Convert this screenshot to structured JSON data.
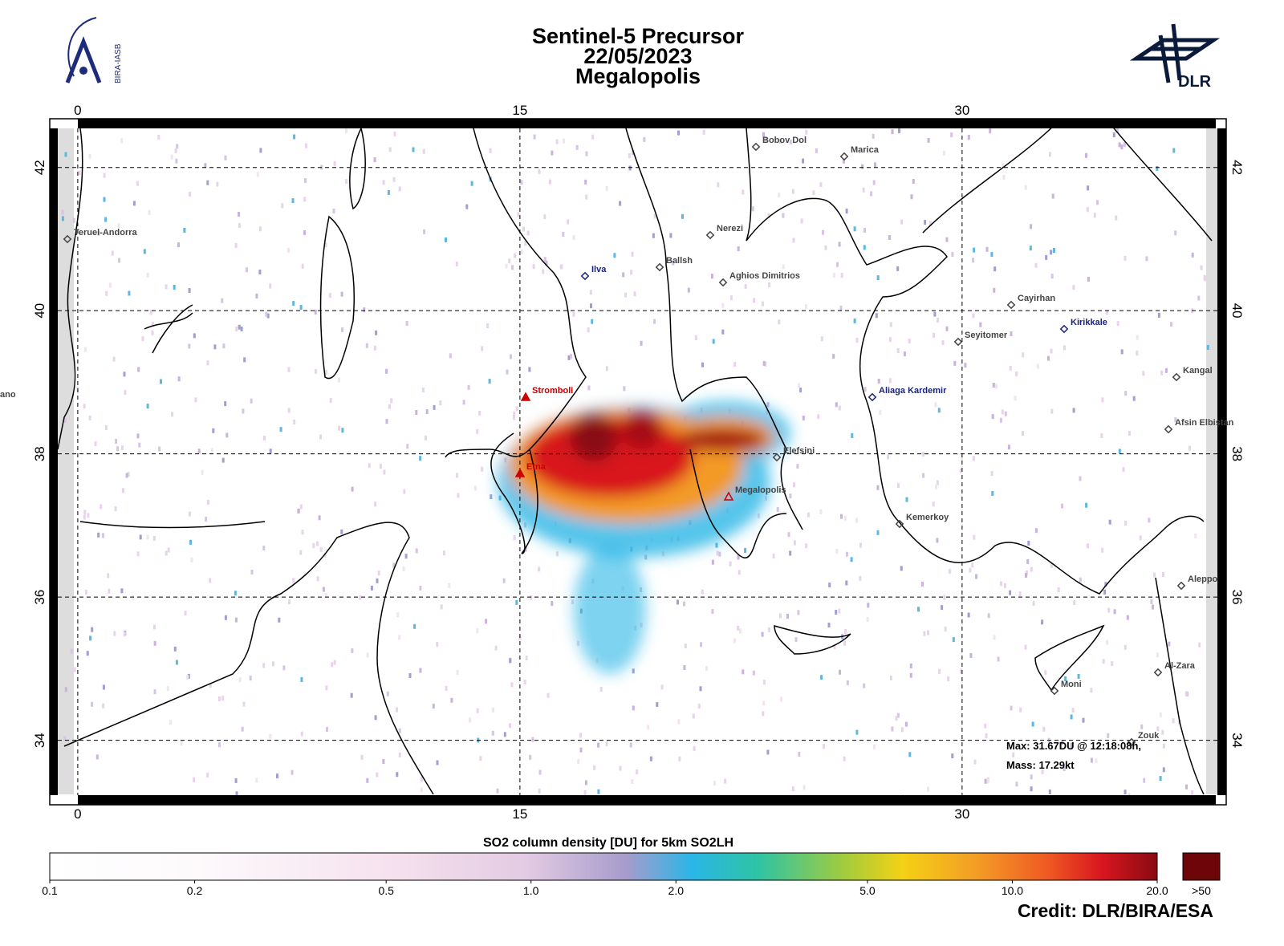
{
  "header": {
    "title": [
      "Sentinel-5 Precursor",
      "22/05/2023",
      "Megalopolis"
    ]
  },
  "logos": {
    "left": "BIRA-IASB",
    "right": "DLR"
  },
  "map": {
    "lonlim": [
      -0.95,
      38.96
    ],
    "latlim": [
      33.1,
      42.68
    ],
    "lon_ticks": [
      0,
      15,
      30
    ],
    "lat_ticks": [
      42,
      40,
      38,
      36,
      34
    ],
    "places": [
      {
        "name": "Teruel-Andorra",
        "color": "#444444"
      },
      {
        "name": "Bobov Dol",
        "color": "#444444"
      },
      {
        "name": "Marica",
        "color": "#444444"
      },
      {
        "name": "Nerezi",
        "color": "#444444"
      },
      {
        "name": "Ilva",
        "color": "#1a237e"
      },
      {
        "name": "Ballsh",
        "color": "#444444"
      },
      {
        "name": "Aghios Dimitrios",
        "color": "#444444"
      },
      {
        "name": "Cayirhan",
        "color": "#444444"
      },
      {
        "name": "Seyitomer",
        "color": "#444444"
      },
      {
        "name": "Kirikkale",
        "color": "#1a237e"
      },
      {
        "name": "Stromboli",
        "color": "#cc0000"
      },
      {
        "name": "Aliaga Kardemir",
        "color": "#1a237e"
      },
      {
        "name": "Kangal",
        "color": "#444444"
      },
      {
        "name": "Afsin Elbistan",
        "color": "#444444"
      },
      {
        "name": "Etna",
        "color": "#cc0000"
      },
      {
        "name": "Elefsini",
        "color": "#444444"
      },
      {
        "name": "Megalopolis",
        "color": "#cc0000"
      },
      {
        "name": "Kemerkoy",
        "color": "#444444"
      },
      {
        "name": "Aleppo",
        "color": "#444444"
      },
      {
        "name": "Al-Zara",
        "color": "#444444"
      },
      {
        "name": "Moni",
        "color": "#444444"
      },
      {
        "name": "Zouk",
        "color": "#444444"
      },
      {
        "name": "ano",
        "color": "#444444"
      }
    ],
    "stats": [
      "Max:  31.67DU @ 12:18:08h,",
      "Mass:  17.29kt"
    ]
  },
  "colorbar": {
    "title": "SO2 column density [DU] for 5km SO2LH",
    "range": [
      0.1,
      20
    ],
    "ticks": [
      0.1,
      0.2,
      0.5,
      {
        "value": 1,
        "label": "1.0"
      },
      {
        "value": 2,
        "label": "2.0"
      },
      {
        "value": 5,
        "label": "5.0"
      },
      {
        "value": 10,
        "label": "10.0"
      },
      {
        "value": 20,
        "label": "20.0"
      }
    ],
    "overflow": ">50"
  },
  "credit": "Credit: DLR/BIRA/ESA"
}
